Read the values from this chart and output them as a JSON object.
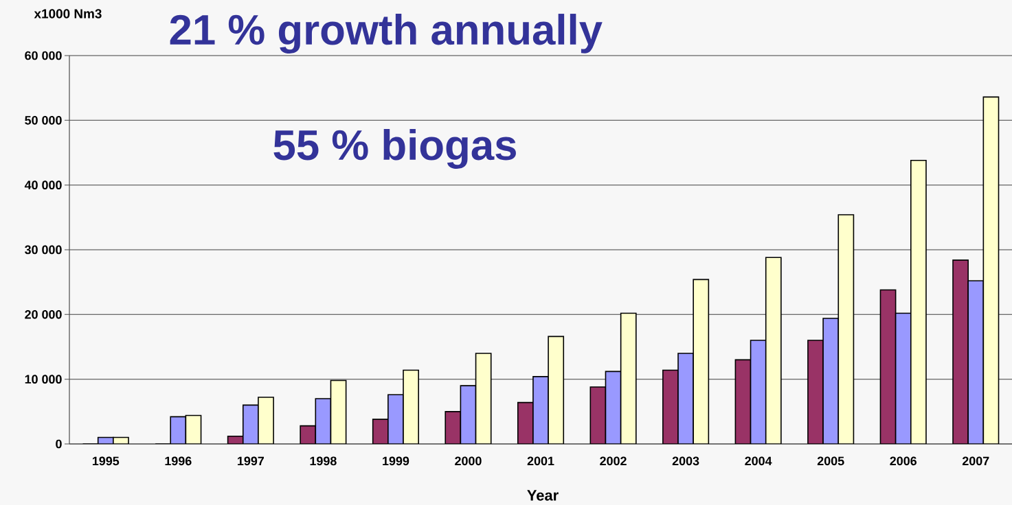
{
  "chart_data": {
    "type": "bar",
    "ylabel": "x1000 Nm3",
    "xlabel": "Year",
    "annotations": [
      "21 % growth annually",
      "55 % biogas"
    ],
    "categories": [
      "1995",
      "1996",
      "1997",
      "1998",
      "1999",
      "2000",
      "2001",
      "2002",
      "2003",
      "2004",
      "2005",
      "2006",
      "2007"
    ],
    "series": [
      {
        "color": "#993366",
        "values": [
          0,
          0,
          1200,
          2800,
          3800,
          5000,
          6400,
          8800,
          11400,
          13000,
          16000,
          23800,
          28400
        ]
      },
      {
        "color": "#9999ff",
        "values": [
          1000,
          4200,
          6000,
          7000,
          7600,
          9000,
          10400,
          11200,
          14000,
          16000,
          19400,
          20200,
          25200
        ]
      },
      {
        "color": "#ffffcc",
        "values": [
          1000,
          4400,
          7200,
          9800,
          11400,
          14000,
          16600,
          20200,
          25400,
          28800,
          35400,
          43800,
          53600
        ]
      }
    ],
    "ylim": [
      0,
      60000
    ],
    "yticks": [
      {
        "value": 0,
        "label": "0"
      },
      {
        "value": 10000,
        "label": "10 000"
      },
      {
        "value": 20000,
        "label": "20 000"
      },
      {
        "value": 30000,
        "label": "30 000"
      },
      {
        "value": 40000,
        "label": "40 000"
      },
      {
        "value": 50000,
        "label": "50 000"
      },
      {
        "value": 60000,
        "label": "60 000"
      }
    ],
    "grid": "y"
  }
}
